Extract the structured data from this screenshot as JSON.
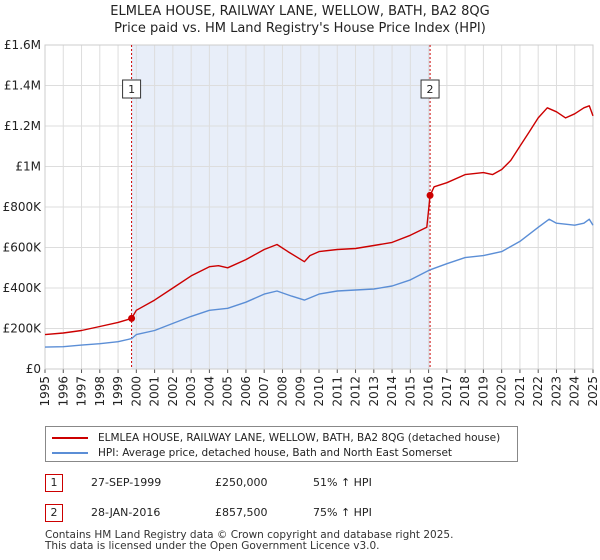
{
  "title_line1": "ELMLEA HOUSE, RAILWAY LANE, WELLOW, BATH, BA2 8QG",
  "title_line2": "Price paid vs. HM Land Registry's House Price Index (HPI)",
  "colors": {
    "property": "#cc0000",
    "hpi": "#5b8ed6",
    "shade": "#e8eef9",
    "grid": "#dddddd",
    "marker_line": "#cc0000"
  },
  "legend": {
    "property_label": "ELMLEA HOUSE, RAILWAY LANE, WELLOW, BATH, BA2 8QG (detached house)",
    "hpi_label": "HPI: Average price, detached house, Bath and North East Somerset"
  },
  "transactions": [
    {
      "num": "1",
      "date": "27-SEP-1999",
      "price": "£250,000",
      "hpi": "51% ↑ HPI"
    },
    {
      "num": "2",
      "date": "28-JAN-2016",
      "price": "£857,500",
      "hpi": "75% ↑ HPI"
    }
  ],
  "footer": {
    "line1": "Contains HM Land Registry data © Crown copyright and database right 2025.",
    "line2": "This data is licensed under the Open Government Licence v3.0."
  },
  "chart_data": {
    "type": "line",
    "title": "Price paid vs. HM Land Registry's House Price Index (HPI)",
    "xlabel": "",
    "ylabel": "",
    "xlim": [
      1995,
      2025
    ],
    "ylim": [
      0,
      1600000
    ],
    "y_ticks": [
      0,
      200000,
      400000,
      600000,
      800000,
      1000000,
      1200000,
      1400000,
      1600000
    ],
    "y_tick_labels": [
      "£0",
      "£200K",
      "£400K",
      "£600K",
      "£800K",
      "£1M",
      "£1.2M",
      "£1.4M",
      "£1.6M"
    ],
    "x_ticks": [
      "1995",
      "1996",
      "1997",
      "1998",
      "1999",
      "2000",
      "2001",
      "2002",
      "2003",
      "2004",
      "2005",
      "2006",
      "2007",
      "2008",
      "2009",
      "2010",
      "2011",
      "2012",
      "2013",
      "2014",
      "2015",
      "2016",
      "2017",
      "2018",
      "2019",
      "2020",
      "2021",
      "2022",
      "2023",
      "2024",
      "2025"
    ],
    "grid": true,
    "legend_position": "below",
    "shaded_period": [
      1999.74,
      2016.08
    ],
    "series": [
      {
        "name": "ELMLEA HOUSE, RAILWAY LANE, WELLOW, BATH, BA2 8QG (detached house)",
        "x": [
          1995.0,
          1996.0,
          1997.0,
          1998.0,
          1999.0,
          1999.74,
          2000.0,
          2001.0,
          2002.0,
          2003.0,
          2004.0,
          2004.5,
          2005.0,
          2006.0,
          2007.0,
          2007.7,
          2008.3,
          2009.2,
          2009.5,
          2010.0,
          2011.0,
          2012.0,
          2013.0,
          2014.0,
          2015.0,
          2015.9,
          2016.08,
          2016.3,
          2017.0,
          2018.0,
          2019.0,
          2019.5,
          2020.0,
          2020.5,
          2021.0,
          2021.5,
          2022.0,
          2022.5,
          2023.0,
          2023.5,
          2024.0,
          2024.5,
          2024.8,
          2025.0
        ],
        "values": [
          170000,
          178000,
          190000,
          210000,
          230000,
          250000,
          290000,
          340000,
          400000,
          460000,
          505000,
          510000,
          500000,
          540000,
          590000,
          615000,
          580000,
          530000,
          560000,
          580000,
          590000,
          595000,
          610000,
          625000,
          660000,
          700000,
          857500,
          900000,
          920000,
          960000,
          970000,
          960000,
          985000,
          1030000,
          1100000,
          1170000,
          1240000,
          1290000,
          1270000,
          1240000,
          1260000,
          1290000,
          1300000,
          1250000
        ]
      },
      {
        "name": "HPI: Average price, detached house, Bath and North East Somerset",
        "x": [
          1995.0,
          1996.0,
          1997.0,
          1998.0,
          1999.0,
          1999.74,
          2000.0,
          2001.0,
          2002.0,
          2003.0,
          2004.0,
          2005.0,
          2006.0,
          2007.0,
          2007.7,
          2008.5,
          2009.2,
          2010.0,
          2011.0,
          2012.0,
          2013.0,
          2014.0,
          2015.0,
          2016.08,
          2017.0,
          2018.0,
          2019.0,
          2020.0,
          2021.0,
          2022.0,
          2022.6,
          2023.0,
          2024.0,
          2024.5,
          2024.8,
          2025.0
        ],
        "values": [
          108000,
          110000,
          118000,
          125000,
          135000,
          150000,
          170000,
          190000,
          225000,
          260000,
          290000,
          300000,
          330000,
          370000,
          385000,
          360000,
          340000,
          370000,
          385000,
          390000,
          395000,
          410000,
          440000,
          490000,
          520000,
          550000,
          560000,
          580000,
          630000,
          700000,
          740000,
          720000,
          710000,
          720000,
          740000,
          710000
        ]
      }
    ],
    "markers": [
      {
        "label": "1",
        "x": 1999.74,
        "y": 250000
      },
      {
        "label": "2",
        "x": 2016.08,
        "y": 857500
      }
    ]
  }
}
